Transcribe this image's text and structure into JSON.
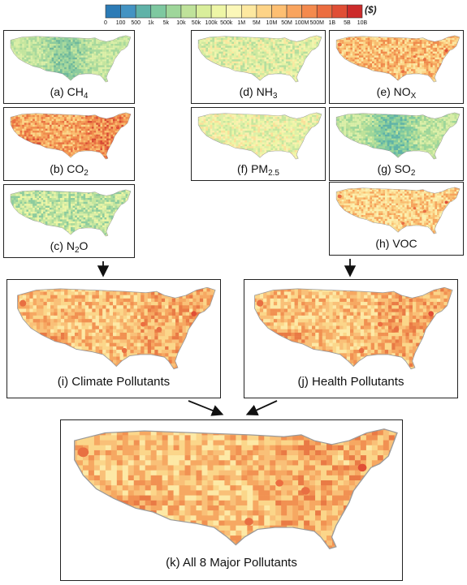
{
  "legend": {
    "unit": "($)",
    "ticks": [
      "0",
      "100",
      "500",
      "1k",
      "5k",
      "10k",
      "50k",
      "100k",
      "500k",
      "1M",
      "5M",
      "10M",
      "50M",
      "100M",
      "500M",
      "1B",
      "5B",
      "10B"
    ],
    "colors": [
      "#2c7bb6",
      "#4393c3",
      "#5fb2a8",
      "#7ec8a0",
      "#9ed69a",
      "#bfe29a",
      "#d9ee9b",
      "#eef6a6",
      "#fbf7b8",
      "#fde8a0",
      "#fdd387",
      "#fdbf72",
      "#f9a45e",
      "#f48a4e",
      "#ec6d40",
      "#e04e35",
      "#cc2b2b"
    ]
  },
  "panels": [
    {
      "id": "a",
      "label": "(a)  CH",
      "sub": "4",
      "suffix": "",
      "scheme": "ch4"
    },
    {
      "id": "b",
      "label": "(b) CO",
      "sub": "2",
      "suffix": "",
      "scheme": "co2"
    },
    {
      "id": "c",
      "label": "(c) N",
      "sub": "2",
      "suffix": "O",
      "scheme": "n2o"
    },
    {
      "id": "d",
      "label": "(d) NH",
      "sub": "3",
      "suffix": "",
      "scheme": "nh3"
    },
    {
      "id": "e",
      "label": "(e) NO",
      "sub": "X",
      "suffix": "",
      "scheme": "nox"
    },
    {
      "id": "f",
      "label": "(f) PM",
      "sub": "2.5",
      "suffix": "",
      "scheme": "pm"
    },
    {
      "id": "g",
      "label": "(g) SO",
      "sub": "2",
      "suffix": "",
      "scheme": "so2"
    },
    {
      "id": "h",
      "label": "(h) VOC",
      "sub": "",
      "suffix": "",
      "scheme": "voc"
    },
    {
      "id": "i",
      "label": "(i) Climate Pollutants",
      "sub": "",
      "suffix": "",
      "scheme": "agg"
    },
    {
      "id": "j",
      "label": "(j) Health Pollutants",
      "sub": "",
      "suffix": "",
      "scheme": "agg"
    },
    {
      "id": "k",
      "label": "(k) All 8 Major Pollutants",
      "sub": "",
      "suffix": "",
      "scheme": "agg"
    }
  ]
}
